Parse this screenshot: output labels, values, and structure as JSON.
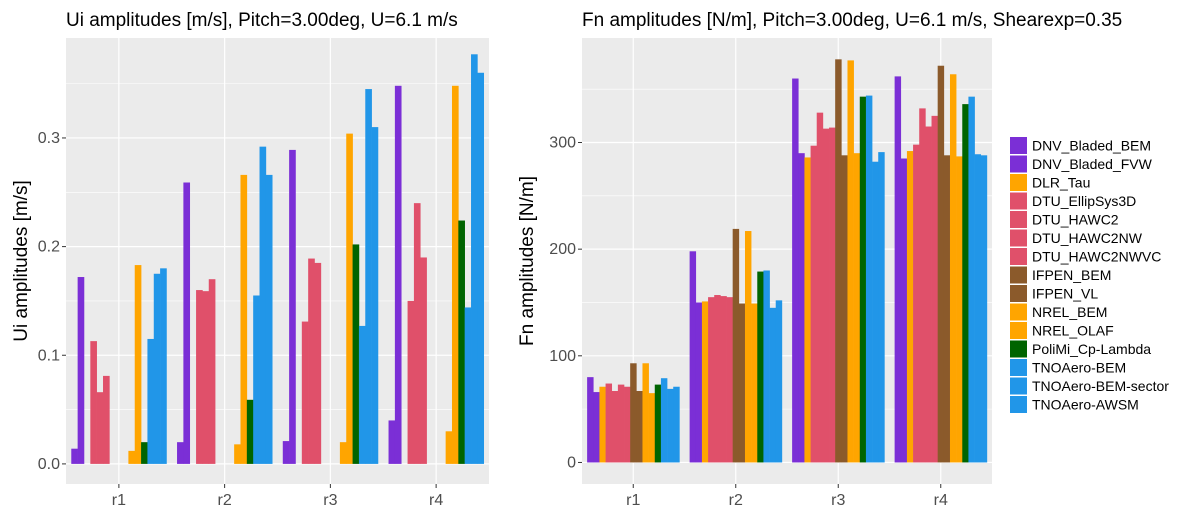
{
  "chart_data": [
    {
      "type": "bar",
      "title": "Ui amplitudes [m/s], Pitch=3.00deg, U=6.1 m/s",
      "xlabel": "",
      "ylabel": "Ui amplitudes [m/s]",
      "categories": [
        "r1",
        "r2",
        "r3",
        "r4"
      ],
      "ylim": [
        -0.0185,
        0.392
      ],
      "yticks": [
        0.0,
        0.1,
        0.2,
        0.3
      ],
      "ytick_labels": [
        "0.0",
        "0.1",
        "0.2",
        "0.3"
      ],
      "grid": true,
      "series": [
        {
          "name": "DNV_Bladed_BEM",
          "values": [
            0.014,
            0.02,
            0.021,
            0.04
          ]
        },
        {
          "name": "DNV_Bladed_FVW",
          "values": [
            0.172,
            0.259,
            0.289,
            0.348
          ]
        },
        {
          "name": "DLR_Tau",
          "values": [
            null,
            null,
            null,
            null
          ]
        },
        {
          "name": "DTU_EllipSys3D",
          "values": [
            0.113,
            0.16,
            0.131,
            0.15
          ]
        },
        {
          "name": "DTU_HAWC2",
          "values": [
            0.066,
            0.159,
            0.189,
            0.24
          ]
        },
        {
          "name": "DTU_HAWC2NW",
          "values": [
            0.081,
            0.17,
            0.185,
            0.19
          ]
        },
        {
          "name": "DTU_HAWC2NWVC",
          "values": [
            null,
            null,
            null,
            null
          ]
        },
        {
          "name": "IFPEN_BEM",
          "values": [
            null,
            null,
            null,
            null
          ]
        },
        {
          "name": "IFPEN_VL",
          "values": [
            null,
            null,
            null,
            null
          ]
        },
        {
          "name": "NREL_BEM",
          "values": [
            0.012,
            0.018,
            0.02,
            0.03
          ]
        },
        {
          "name": "NREL_OLAF",
          "values": [
            0.183,
            0.266,
            0.304,
            0.348
          ]
        },
        {
          "name": "PoliMi_Cp-Lambda",
          "values": [
            0.02,
            0.059,
            0.202,
            0.224
          ]
        },
        {
          "name": "TNOAero-BEM",
          "values": [
            0.115,
            0.155,
            0.127,
            0.144
          ]
        },
        {
          "name": "TNOAero-BEM-sector",
          "values": [
            0.175,
            0.292,
            0.345,
            0.377
          ]
        },
        {
          "name": "TNOAero-AWSM",
          "values": [
            0.18,
            0.266,
            0.31,
            0.36
          ]
        }
      ]
    },
    {
      "type": "bar",
      "title": "Fn amplitudes [N/m], Pitch=3.00deg, U=6.1 m/s, Shearexp=0.35",
      "xlabel": "",
      "ylabel": "Fn amplitudes [N/m]",
      "categories": [
        "r1",
        "r2",
        "r3",
        "r4"
      ],
      "ylim": [
        -20.2,
        398
      ],
      "yticks": [
        0,
        100,
        200,
        300
      ],
      "ytick_labels": [
        "0",
        "100",
        "200",
        "300"
      ],
      "grid": true,
      "legend_position": "right",
      "series": [
        {
          "name": "DNV_Bladed_BEM",
          "values": [
            80,
            198,
            360,
            362
          ]
        },
        {
          "name": "DNV_Bladed_FVW",
          "values": [
            66,
            150,
            290,
            285
          ]
        },
        {
          "name": "DLR_Tau",
          "values": [
            71,
            151,
            286,
            292
          ]
        },
        {
          "name": "DTU_EllipSys3D",
          "values": [
            74,
            155,
            297,
            298
          ]
        },
        {
          "name": "DTU_HAWC2",
          "values": [
            67,
            157,
            328,
            332
          ]
        },
        {
          "name": "DTU_HAWC2NW",
          "values": [
            73,
            156,
            313,
            315
          ]
        },
        {
          "name": "DTU_HAWC2NWVC",
          "values": [
            71,
            155,
            314,
            325
          ]
        },
        {
          "name": "IFPEN_BEM",
          "values": [
            93,
            219,
            378,
            372
          ]
        },
        {
          "name": "IFPEN_VL",
          "values": [
            67,
            149,
            288,
            288
          ]
        },
        {
          "name": "NREL_BEM",
          "values": [
            93,
            217,
            377,
            364
          ]
        },
        {
          "name": "NREL_OLAF",
          "values": [
            65,
            149,
            290,
            287
          ]
        },
        {
          "name": "PoliMi_Cp-Lambda",
          "values": [
            73,
            179,
            343,
            336
          ]
        },
        {
          "name": "TNOAero-BEM",
          "values": [
            79,
            180,
            344,
            343
          ]
        },
        {
          "name": "TNOAero-BEM-sector",
          "values": [
            69,
            145,
            282,
            289
          ]
        },
        {
          "name": "TNOAero-AWSM",
          "values": [
            71,
            152,
            291,
            288
          ]
        }
      ]
    }
  ],
  "colors": {
    "DNV_Bladed_BEM": "#7b2fd6",
    "DNV_Bladed_FVW": "#7b2fd6",
    "DLR_Tau": "#ffa500",
    "DTU_EllipSys3D": "#e0506a",
    "DTU_HAWC2": "#e0506a",
    "DTU_HAWC2NW": "#e0506a",
    "DTU_HAWC2NWVC": "#e0506a",
    "IFPEN_BEM": "#8b5a2b",
    "IFPEN_VL": "#8b5a2b",
    "NREL_BEM": "#ffa500",
    "NREL_OLAF": "#ffa500",
    "PoliMi_Cp-Lambda": "#006400",
    "TNOAero-BEM": "#2196e8",
    "TNOAero-BEM-sector": "#2196e8",
    "TNOAero-AWSM": "#2196e8",
    "panel_background": "#ebebeb",
    "grid": "#ffffff"
  }
}
